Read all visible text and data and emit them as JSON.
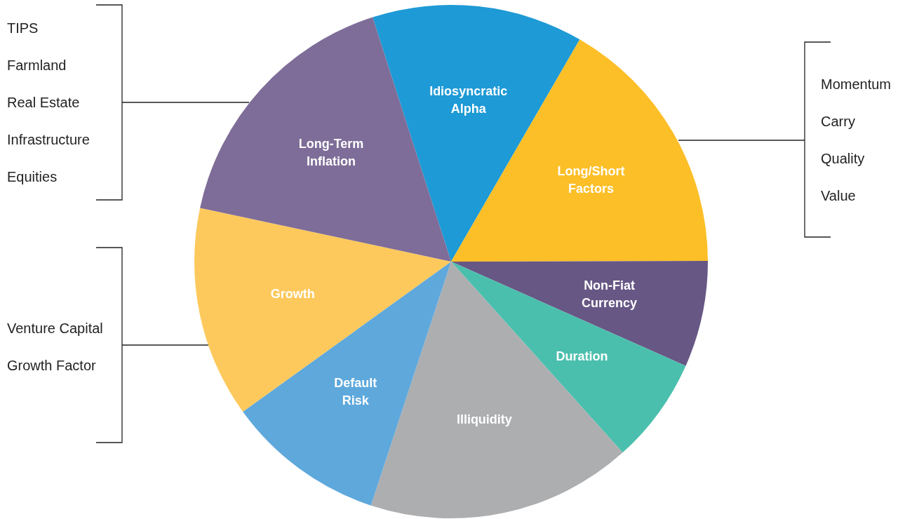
{
  "chart_data": {
    "type": "pie",
    "categories": [
      "Idiosyncratic Alpha",
      "Long/Short Factors",
      "Non-Fiat Currency",
      "Duration",
      "Illiquidity",
      "Default Risk",
      "Growth",
      "Long-Term Inflation"
    ],
    "values": [
      13.3,
      16.6,
      6.7,
      6.7,
      16.7,
      10,
      13.3,
      16.7
    ],
    "colors": [
      "#1e9ad6",
      "#fdbf27",
      "#675785",
      "#4bbfad",
      "#adaeb0",
      "#5ea8dc",
      "#fdc95c",
      "#7e6d98"
    ],
    "annotations": [
      "TIPS\nFarmland\nReal Estate\nInfrastructure\nEquities",
      "Venture Capital\nGrowth Factor",
      "Momentum\nCarry\nQuality\nValue"
    ]
  }
}
